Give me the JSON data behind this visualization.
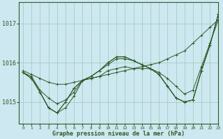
{
  "background_color": "#cde8f0",
  "grid_color": "#9dc8b8",
  "line_color": "#2d5a27",
  "marker_color": "#2d5a27",
  "title": "Graphe pression niveau de la mer (hPa)",
  "ylabel_ticks": [
    1015,
    1016,
    1017
  ],
  "xlim": [
    -0.5,
    23
  ],
  "ylim": [
    1014.45,
    1017.55
  ],
  "series": [
    [
      1015.75,
      1015.65,
      1015.3,
      1015.1,
      1014.95,
      1015.05,
      1015.25,
      1015.55,
      1015.6,
      1015.65,
      1015.8,
      1015.85,
      1015.9,
      1015.85,
      1015.85,
      1015.85,
      1015.75,
      1015.6,
      1015.4,
      1015.2,
      1015.3,
      1015.9,
      1016.5,
      1017.1
    ],
    [
      1015.75,
      1015.6,
      1015.25,
      1014.85,
      1014.72,
      1014.85,
      1015.15,
      1015.55,
      1015.65,
      1015.8,
      1015.95,
      1016.1,
      1016.1,
      1016.05,
      1015.95,
      1015.85,
      1015.7,
      1015.4,
      1015.1,
      1015.0,
      1015.05,
      1015.8,
      1016.45,
      1017.25
    ],
    [
      1015.75,
      1015.6,
      1015.25,
      1014.85,
      1014.72,
      1015.0,
      1015.35,
      1015.55,
      1015.65,
      1015.8,
      1016.0,
      1016.15,
      1016.15,
      1016.05,
      1015.95,
      1015.85,
      1015.7,
      1015.4,
      1015.1,
      1015.0,
      1015.05,
      1015.8,
      1016.45,
      1017.25
    ],
    [
      1015.75,
      1015.6,
      1015.25,
      1014.85,
      1014.72,
      1015.0,
      1015.35,
      1015.55,
      1015.65,
      1015.8,
      1016.0,
      1016.15,
      1016.15,
      1016.05,
      1015.95,
      1015.85,
      1015.7,
      1015.4,
      1015.1,
      1015.0,
      1015.05,
      1015.8,
      1016.45,
      1017.25
    ],
    [
      1015.8,
      1015.7,
      1015.6,
      1015.5,
      1015.45,
      1015.45,
      1015.5,
      1015.55,
      1015.6,
      1015.65,
      1015.7,
      1015.75,
      1015.8,
      1015.85,
      1015.9,
      1015.95,
      1016.0,
      1016.1,
      1016.2,
      1016.3,
      1016.5,
      1016.7,
      1016.9,
      1017.1
    ]
  ]
}
